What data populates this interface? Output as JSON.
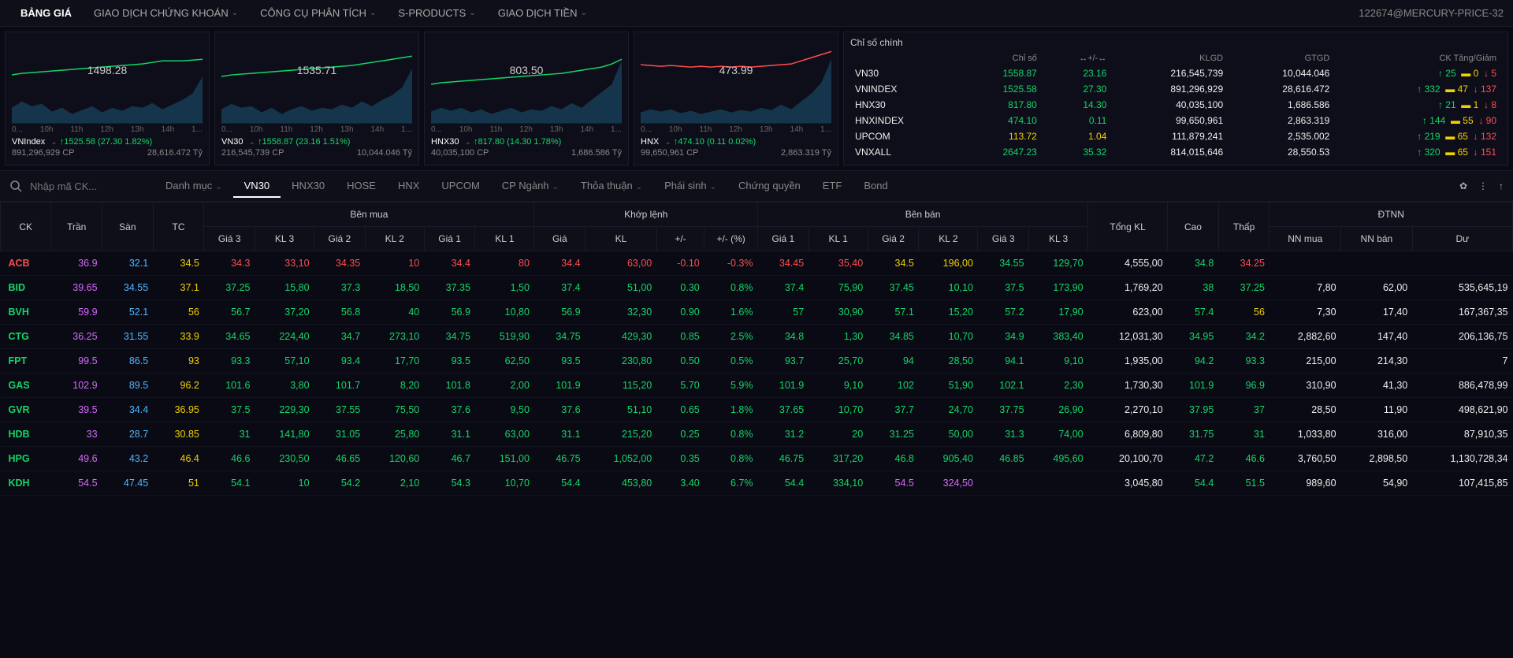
{
  "colors": {
    "bg": "#0a0a14",
    "panel": "#0e0e1a",
    "green": "#13d667",
    "red": "#ff4d4d",
    "yellow": "#f0d000",
    "purple": "#d867ff",
    "cyan": "#4db8ff",
    "white": "#eeeeee",
    "grid": "#1a1a2a"
  },
  "topnav": {
    "items": [
      {
        "label": "BẢNG GIÁ",
        "active": true,
        "dropdown": false
      },
      {
        "label": "GIAO DỊCH CHỨNG KHOÁN",
        "active": false,
        "dropdown": true
      },
      {
        "label": "CÔNG CỤ PHÂN TÍCH",
        "active": false,
        "dropdown": true
      },
      {
        "label": "S-PRODUCTS",
        "active": false,
        "dropdown": true
      },
      {
        "label": "GIAO DỊCH TIỀN",
        "active": false,
        "dropdown": true
      }
    ],
    "account": "122674@MERCURY-PRICE-32"
  },
  "charts": [
    {
      "name": "VNIndex",
      "mid_label": "1498.28",
      "stat_line": "↑1525.58 (27.30  1.82%)",
      "sub_left": "891,296,929 CP",
      "sub_right": "28,616.472 Tỷ",
      "line_color": "#13d667",
      "area_color": "#1a5070",
      "line_y": [
        48,
        46,
        45,
        44,
        43,
        42,
        41,
        40,
        39,
        38,
        37,
        36,
        35,
        34,
        32,
        30,
        30,
        30,
        29,
        28
      ],
      "area_y": [
        90,
        82,
        88,
        85,
        95,
        90,
        98,
        93,
        88,
        96,
        90,
        94,
        88,
        90,
        84,
        92,
        86,
        80,
        72,
        50
      ],
      "x_ticks": [
        "0...",
        "10h",
        "11h",
        "12h",
        "13h",
        "14h",
        "1..."
      ]
    },
    {
      "name": "VN30",
      "mid_label": "1535.71",
      "stat_line": "↑1558.87 (23.16  1.51%)",
      "sub_left": "216,545,739 CP",
      "sub_right": "10,044.046 Tỷ",
      "line_color": "#13d667",
      "area_color": "#1a5070",
      "line_y": [
        50,
        48,
        47,
        46,
        45,
        44,
        43,
        42,
        41,
        40,
        39,
        38,
        37,
        36,
        34,
        32,
        30,
        28,
        26,
        24
      ],
      "area_y": [
        92,
        85,
        90,
        88,
        96,
        90,
        98,
        92,
        88,
        94,
        90,
        92,
        86,
        90,
        82,
        88,
        80,
        74,
        64,
        40
      ],
      "x_ticks": [
        "0...",
        "10h",
        "11h",
        "12h",
        "13h",
        "14h",
        "1..."
      ]
    },
    {
      "name": "HNX30",
      "mid_label": "803.50",
      "stat_line": "↑817.80 (14.30  1.78%)",
      "sub_left": "40,035,100 CP",
      "sub_right": "1,686.586 Tỷ",
      "line_color": "#13d667",
      "area_color": "#1a5070",
      "line_y": [
        60,
        58,
        57,
        56,
        55,
        54,
        53,
        52,
        51,
        50,
        49,
        48,
        47,
        46,
        44,
        42,
        40,
        38,
        34,
        28
      ],
      "area_y": [
        95,
        90,
        94,
        90,
        96,
        92,
        98,
        94,
        90,
        96,
        92,
        94,
        88,
        92,
        84,
        90,
        80,
        70,
        60,
        30
      ],
      "x_ticks": [
        "0...",
        "10h",
        "11h",
        "12h",
        "13h",
        "14h",
        "1..."
      ]
    },
    {
      "name": "HNX",
      "mid_label": "473.99",
      "stat_line": "↑474.10 (0.11  0.02%)",
      "sub_left": "99,650,961 CP",
      "sub_right": "2,863.319 Tỷ",
      "line_color": "#ff4d4d",
      "area_color": "#1a5070",
      "line_y": [
        35,
        36,
        37,
        36,
        37,
        38,
        37,
        38,
        37,
        38,
        37,
        38,
        37,
        36,
        35,
        34,
        30,
        26,
        22,
        18
      ],
      "area_y": [
        96,
        92,
        95,
        92,
        97,
        94,
        98,
        95,
        92,
        96,
        93,
        95,
        90,
        93,
        86,
        92,
        82,
        72,
        58,
        28
      ],
      "x_ticks": [
        "0...",
        "10h",
        "11h",
        "12h",
        "13h",
        "14h",
        "1..."
      ]
    }
  ],
  "index_table": {
    "title": "Chỉ số chính",
    "headers": [
      "",
      "Chỉ số",
      "↔+/-↔",
      "KLGD",
      "GTGD",
      "CK Tăng/Giảm"
    ],
    "rows": [
      {
        "name": "VN30",
        "idx": "1558.87",
        "chg": "23.16",
        "klgd": "216,545,739",
        "gtgd": "10,044.046",
        "up": "25",
        "flat": "0",
        "down": "5",
        "idx_c": "green",
        "chg_c": "green"
      },
      {
        "name": "VNINDEX",
        "idx": "1525.58",
        "chg": "27.30",
        "klgd": "891,296,929",
        "gtgd": "28,616.472",
        "up": "332",
        "flat": "47",
        "down": "137",
        "idx_c": "green",
        "chg_c": "green"
      },
      {
        "name": "HNX30",
        "idx": "817.80",
        "chg": "14.30",
        "klgd": "40,035,100",
        "gtgd": "1,686.586",
        "up": "21",
        "flat": "1",
        "down": "8",
        "idx_c": "green",
        "chg_c": "green"
      },
      {
        "name": "HNXINDEX",
        "idx": "474.10",
        "chg": "0.11",
        "klgd": "99,650,961",
        "gtgd": "2,863.319",
        "up": "144",
        "flat": "55",
        "down": "90",
        "idx_c": "green",
        "chg_c": "green"
      },
      {
        "name": "UPCOM",
        "idx": "113.72",
        "chg": "1.04",
        "klgd": "111,879,241",
        "gtgd": "2,535.002",
        "up": "219",
        "flat": "65",
        "down": "132",
        "idx_c": "yellow",
        "chg_c": "yellow"
      },
      {
        "name": "VNXALL",
        "idx": "2647.23",
        "chg": "35.32",
        "klgd": "814,015,646",
        "gtgd": "28,550.53",
        "up": "320",
        "flat": "65",
        "down": "151",
        "idx_c": "green",
        "chg_c": "green"
      }
    ]
  },
  "filterbar": {
    "search_placeholder": "Nhập mã CK...",
    "tabs": [
      {
        "label": "Danh mục",
        "dropdown": true
      },
      {
        "label": "VN30",
        "active": true
      },
      {
        "label": "HNX30"
      },
      {
        "label": "HOSE"
      },
      {
        "label": "HNX"
      },
      {
        "label": "UPCOM"
      },
      {
        "label": "CP Ngành",
        "dropdown": true
      },
      {
        "label": "Thỏa thuận",
        "dropdown": true
      },
      {
        "label": "Phái sinh",
        "dropdown": true
      },
      {
        "label": "Chứng quyền"
      },
      {
        "label": "ETF"
      },
      {
        "label": "Bond"
      }
    ]
  },
  "price_table": {
    "group_headers": {
      "ck": "CK",
      "tran": "Trần",
      "san": "Sàn",
      "tc": "TC",
      "ben_mua": "Bên mua",
      "khop_lenh": "Khớp lệnh",
      "ben_ban": "Bên bán",
      "tong_kl": "Tổng KL",
      "cao": "Cao",
      "thap": "Thấp",
      "dtnn": "ĐTNN"
    },
    "sub_headers": {
      "gia3": "Giá 3",
      "kl3": "KL 3",
      "gia2": "Giá 2",
      "kl2": "KL 2",
      "gia1": "Giá 1",
      "kl1": "KL 1",
      "gia": "Giá",
      "kl": "KL",
      "pm": "+/-",
      "pmp": "+/- (%)",
      "bgia1": "Giá 1",
      "bkl1": "KL 1",
      "bgia2": "Giá 2",
      "bkl2": "KL 2",
      "bgia3": "Giá 3",
      "bkl3": "KL 3",
      "nnmua": "NN mua",
      "nnban": "NN bán",
      "du": "Dư"
    },
    "rows": [
      {
        "ck": "ACB",
        "ck_c": "red",
        "tran": "36.9",
        "san": "32.1",
        "tc": "34.5",
        "bm": [
          [
            "34.3",
            "33,10",
            "red"
          ],
          [
            "34.35",
            "10",
            "red"
          ],
          [
            "34.4",
            "80",
            "red"
          ]
        ],
        "kl": [
          "34.4",
          "63,00",
          "-0.10",
          "-0.3%",
          "red"
        ],
        "bb": [
          [
            "34.45",
            "35,40",
            "red"
          ],
          [
            "34.5",
            "196,00",
            "yellow"
          ],
          [
            "34.55",
            "129,70",
            "green"
          ]
        ],
        "tong": "4,555,00",
        "cao": "34.8",
        "cao_c": "green",
        "thap": "34.25",
        "thap_c": "red",
        "nnm": "",
        "nnb": "",
        "du": ""
      },
      {
        "ck": "BID",
        "ck_c": "green",
        "tran": "39.65",
        "san": "34.55",
        "tc": "37.1",
        "bm": [
          [
            "37.25",
            "15,80",
            "green"
          ],
          [
            "37.3",
            "18,50",
            "green"
          ],
          [
            "37.35",
            "1,50",
            "green"
          ]
        ],
        "kl": [
          "37.4",
          "51,00",
          "0.30",
          "0.8%",
          "green"
        ],
        "bb": [
          [
            "37.4",
            "75,90",
            "green"
          ],
          [
            "37.45",
            "10,10",
            "green"
          ],
          [
            "37.5",
            "173,90",
            "green"
          ]
        ],
        "tong": "1,769,20",
        "cao": "38",
        "cao_c": "green",
        "thap": "37.25",
        "thap_c": "green",
        "nnm": "7,80",
        "nnb": "62,00",
        "du": "535,645,19"
      },
      {
        "ck": "BVH",
        "ck_c": "green",
        "tran": "59.9",
        "san": "52.1",
        "tc": "56",
        "bm": [
          [
            "56.7",
            "37,20",
            "green"
          ],
          [
            "56.8",
            "40",
            "green"
          ],
          [
            "56.9",
            "10,80",
            "green"
          ]
        ],
        "kl": [
          "56.9",
          "32,30",
          "0.90",
          "1.6%",
          "green"
        ],
        "bb": [
          [
            "57",
            "30,90",
            "green"
          ],
          [
            "57.1",
            "15,20",
            "green"
          ],
          [
            "57.2",
            "17,90",
            "green"
          ]
        ],
        "tong": "623,00",
        "cao": "57.4",
        "cao_c": "green",
        "thap": "56",
        "thap_c": "yellow",
        "nnm": "7,30",
        "nnb": "17,40",
        "du": "167,367,35"
      },
      {
        "ck": "CTG",
        "ck_c": "green",
        "tran": "36.25",
        "san": "31.55",
        "tc": "33.9",
        "bm": [
          [
            "34.65",
            "224,40",
            "green"
          ],
          [
            "34.7",
            "273,10",
            "green"
          ],
          [
            "34.75",
            "519,90",
            "green"
          ]
        ],
        "kl": [
          "34.75",
          "429,30",
          "0.85",
          "2.5%",
          "green"
        ],
        "bb": [
          [
            "34.8",
            "1,30",
            "green"
          ],
          [
            "34.85",
            "10,70",
            "green"
          ],
          [
            "34.9",
            "383,40",
            "green"
          ]
        ],
        "tong": "12,031,30",
        "cao": "34.95",
        "cao_c": "green",
        "thap": "34.2",
        "thap_c": "green",
        "nnm": "2,882,60",
        "nnb": "147,40",
        "du": "206,136,75"
      },
      {
        "ck": "FPT",
        "ck_c": "green",
        "tran": "99.5",
        "san": "86.5",
        "tc": "93",
        "bm": [
          [
            "93.3",
            "57,10",
            "green"
          ],
          [
            "93.4",
            "17,70",
            "green"
          ],
          [
            "93.5",
            "62,50",
            "green"
          ]
        ],
        "kl": [
          "93.5",
          "230,80",
          "0.50",
          "0.5%",
          "green"
        ],
        "bb": [
          [
            "93.7",
            "25,70",
            "green"
          ],
          [
            "94",
            "28,50",
            "green"
          ],
          [
            "94.1",
            "9,10",
            "green"
          ]
        ],
        "tong": "1,935,00",
        "cao": "94.2",
        "cao_c": "green",
        "thap": "93.3",
        "thap_c": "green",
        "nnm": "215,00",
        "nnb": "214,30",
        "du": "7"
      },
      {
        "ck": "GAS",
        "ck_c": "green",
        "tran": "102.9",
        "san": "89.5",
        "tc": "96.2",
        "bm": [
          [
            "101.6",
            "3,80",
            "green"
          ],
          [
            "101.7",
            "8,20",
            "green"
          ],
          [
            "101.8",
            "2,00",
            "green"
          ]
        ],
        "kl": [
          "101.9",
          "115,20",
          "5.70",
          "5.9%",
          "green"
        ],
        "bb": [
          [
            "101.9",
            "9,10",
            "green"
          ],
          [
            "102",
            "51,90",
            "green"
          ],
          [
            "102.1",
            "2,30",
            "green"
          ]
        ],
        "tong": "1,730,30",
        "cao": "101.9",
        "cao_c": "green",
        "thap": "96.9",
        "thap_c": "green",
        "nnm": "310,90",
        "nnb": "41,30",
        "du": "886,478,99"
      },
      {
        "ck": "GVR",
        "ck_c": "green",
        "tran": "39.5",
        "san": "34.4",
        "tc": "36.95",
        "bm": [
          [
            "37.5",
            "229,30",
            "green"
          ],
          [
            "37.55",
            "75,50",
            "green"
          ],
          [
            "37.6",
            "9,50",
            "green"
          ]
        ],
        "kl": [
          "37.6",
          "51,10",
          "0.65",
          "1.8%",
          "green"
        ],
        "bb": [
          [
            "37.65",
            "10,70",
            "green"
          ],
          [
            "37.7",
            "24,70",
            "green"
          ],
          [
            "37.75",
            "26,90",
            "green"
          ]
        ],
        "tong": "2,270,10",
        "cao": "37.95",
        "cao_c": "green",
        "thap": "37",
        "thap_c": "green",
        "nnm": "28,50",
        "nnb": "11,90",
        "du": "498,621,90"
      },
      {
        "ck": "HDB",
        "ck_c": "green",
        "tran": "33",
        "san": "28.7",
        "tc": "30.85",
        "bm": [
          [
            "31",
            "141,80",
            "green"
          ],
          [
            "31.05",
            "25,80",
            "green"
          ],
          [
            "31.1",
            "63,00",
            "green"
          ]
        ],
        "kl": [
          "31.1",
          "215,20",
          "0.25",
          "0.8%",
          "green"
        ],
        "bb": [
          [
            "31.2",
            "20",
            "green"
          ],
          [
            "31.25",
            "50,00",
            "green"
          ],
          [
            "31.3",
            "74,00",
            "green"
          ]
        ],
        "tong": "6,809,80",
        "cao": "31.75",
        "cao_c": "green",
        "thap": "31",
        "thap_c": "green",
        "nnm": "1,033,80",
        "nnb": "316,00",
        "du": "87,910,35"
      },
      {
        "ck": "HPG",
        "ck_c": "green",
        "tran": "49.6",
        "san": "43.2",
        "tc": "46.4",
        "bm": [
          [
            "46.6",
            "230,50",
            "green"
          ],
          [
            "46.65",
            "120,60",
            "green"
          ],
          [
            "46.7",
            "151,00",
            "green"
          ]
        ],
        "kl": [
          "46.75",
          "1,052,00",
          "0.35",
          "0.8%",
          "green"
        ],
        "bb": [
          [
            "46.75",
            "317,20",
            "green"
          ],
          [
            "46.8",
            "905,40",
            "green"
          ],
          [
            "46.85",
            "495,60",
            "green"
          ]
        ],
        "tong": "20,100,70",
        "cao": "47.2",
        "cao_c": "green",
        "thap": "46.6",
        "thap_c": "green",
        "nnm": "3,760,50",
        "nnb": "2,898,50",
        "du": "1,130,728,34"
      },
      {
        "ck": "KDH",
        "ck_c": "green",
        "tran": "54.5",
        "san": "47.45",
        "tc": "51",
        "bm": [
          [
            "54.1",
            "10",
            "green"
          ],
          [
            "54.2",
            "2,10",
            "green"
          ],
          [
            "54.3",
            "10,70",
            "green"
          ]
        ],
        "kl": [
          "54.4",
          "453,80",
          "3.40",
          "6.7%",
          "green"
        ],
        "bb": [
          [
            "54.4",
            "334,10",
            "green"
          ],
          [
            "54.5",
            "324,50",
            "purple"
          ],
          [
            "",
            "",
            ""
          ]
        ],
        "tong": "3,045,80",
        "cao": "54.4",
        "cao_c": "green",
        "thap": "51.5",
        "thap_c": "green",
        "nnm": "989,60",
        "nnb": "54,90",
        "du": "107,415,85"
      }
    ]
  }
}
